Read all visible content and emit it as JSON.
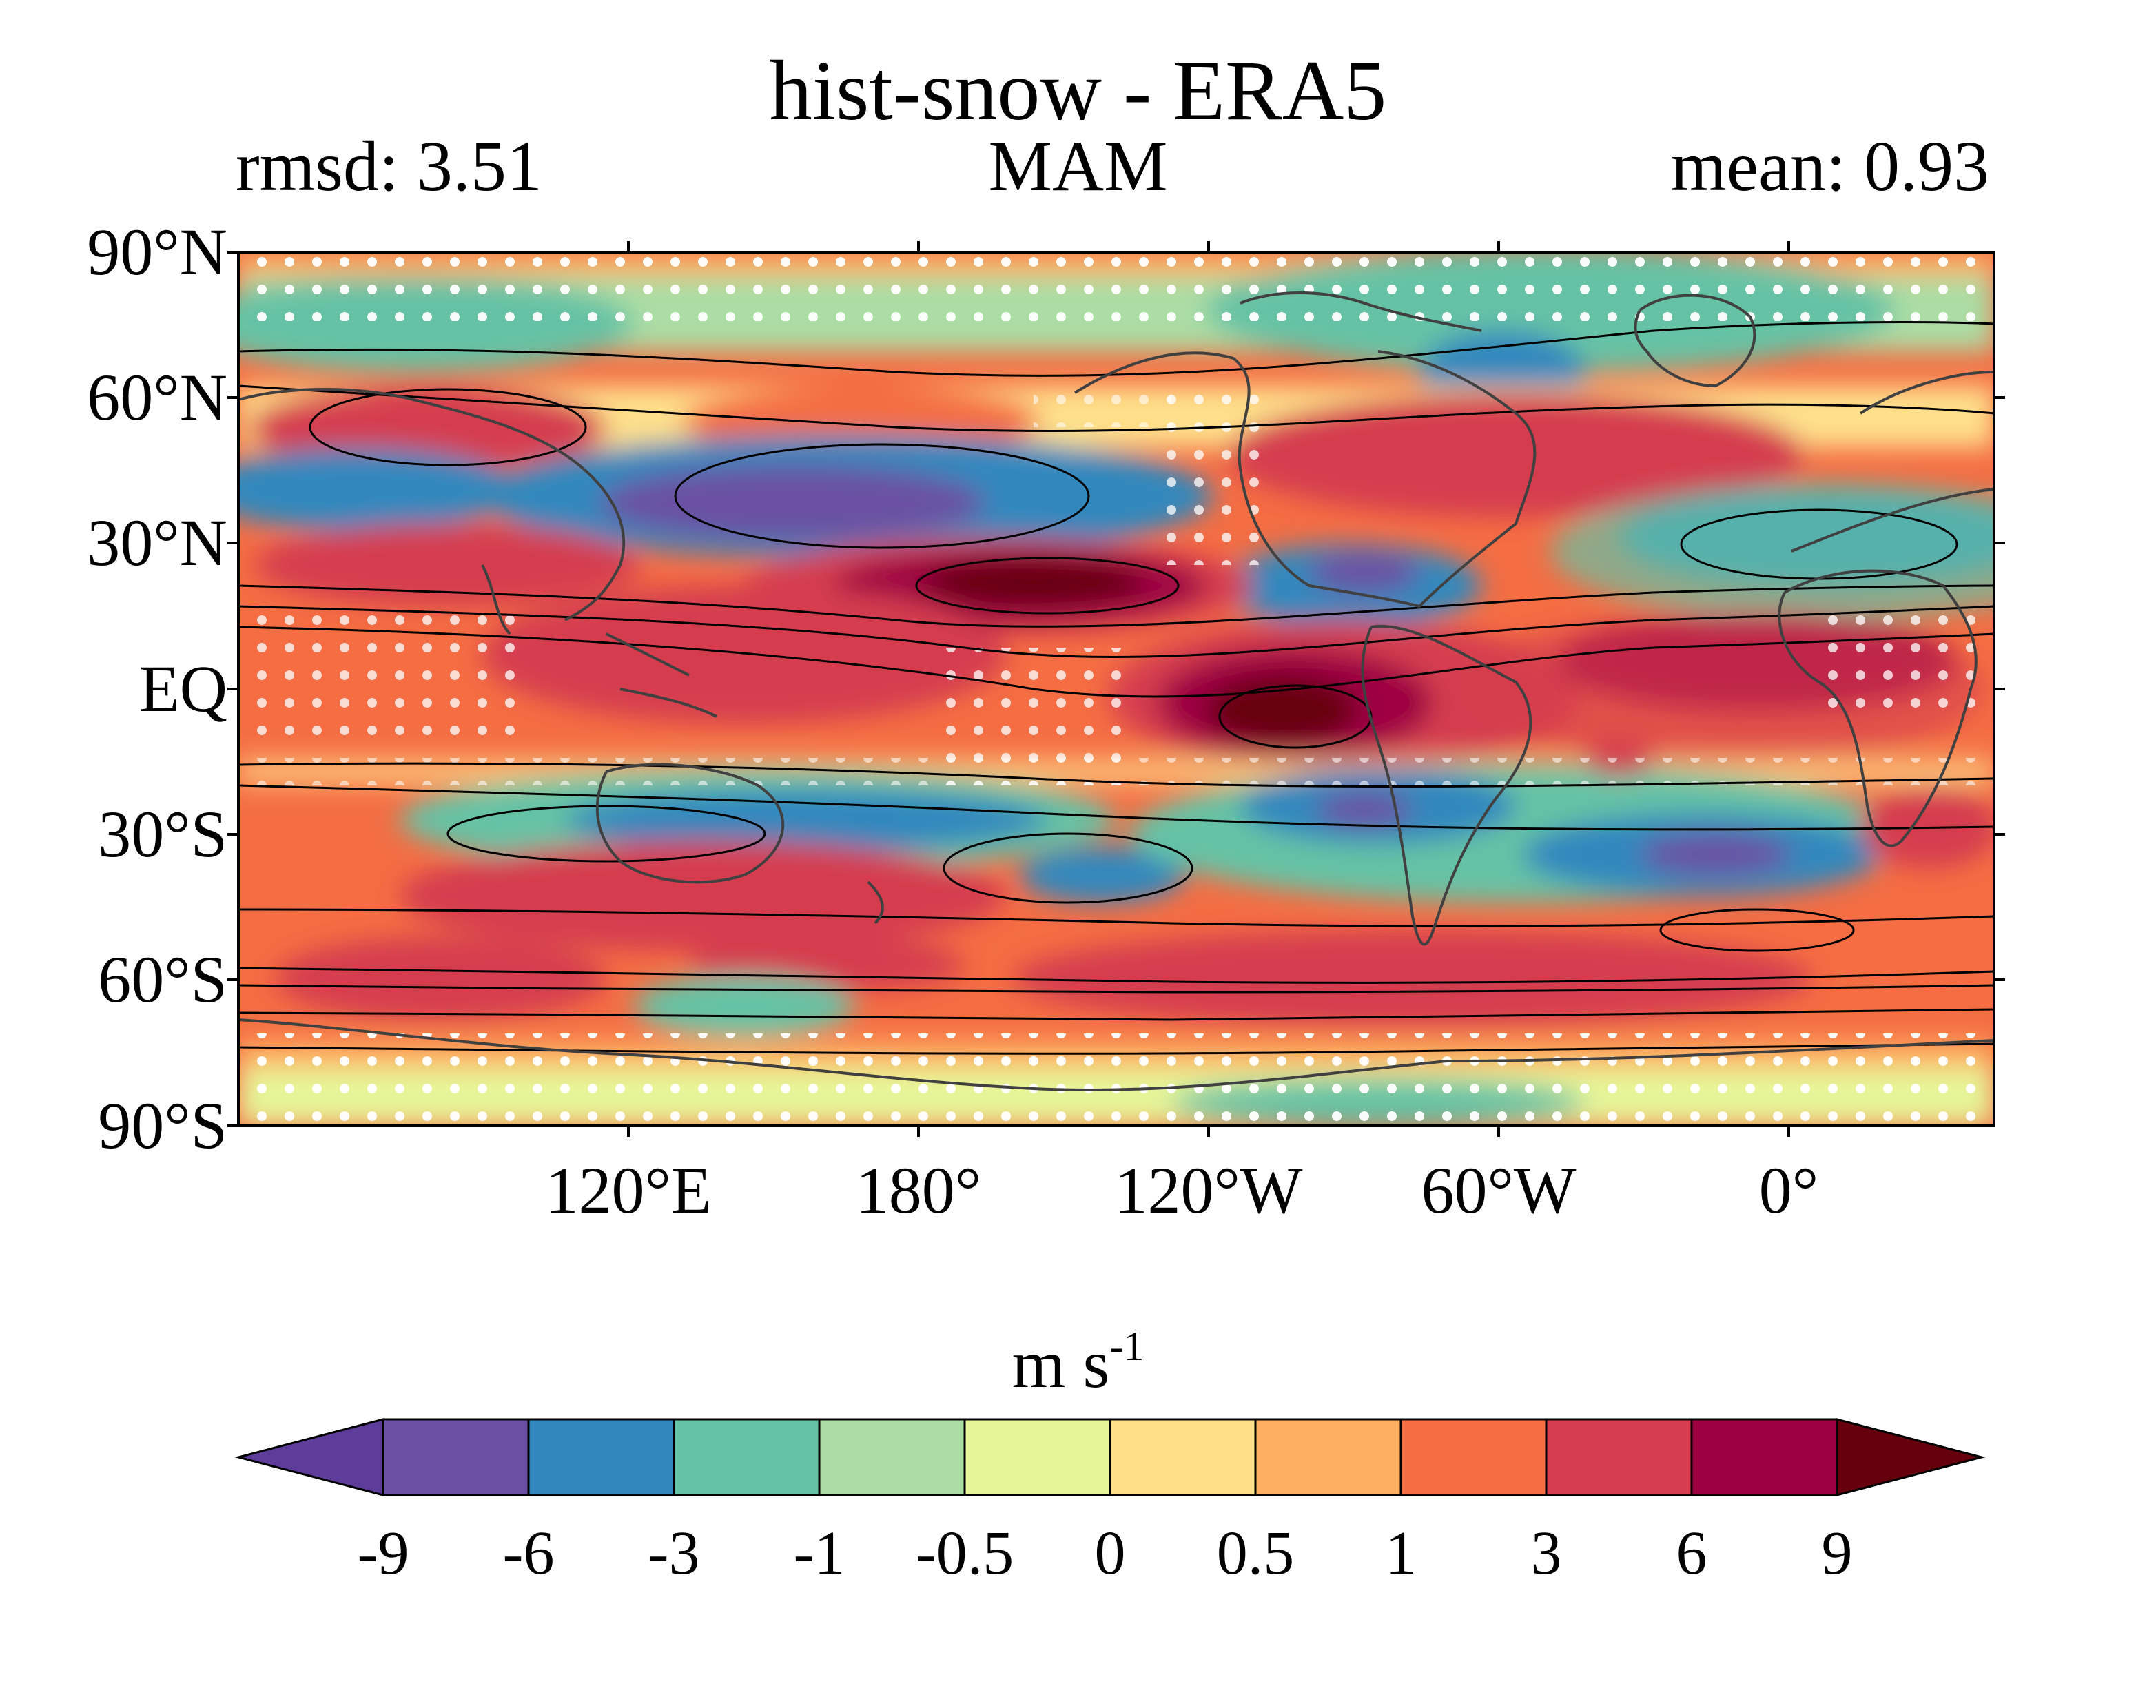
{
  "header": {
    "title": "hist-snow - ERA5",
    "left_label": "rmsd: 3.51",
    "center_label": "MAM",
    "right_label": "mean: 0.93"
  },
  "map": {
    "lat_labels": [
      "90°N",
      "60°N",
      "30°N",
      "EQ",
      "30°S",
      "60°S",
      "90°S"
    ],
    "lon_labels": [
      "120°E",
      "180°",
      "120°W",
      "60°W",
      "0°"
    ],
    "projection": "plate-carree",
    "central_longitude": "-150",
    "stippling": "white dots",
    "contour_color": "#000000",
    "coastline_color": "#404040"
  },
  "colorbar": {
    "unit_base": "m s",
    "unit_exp": "-1",
    "tick_labels": [
      "-9",
      "-6",
      "-3",
      "-1",
      "-0.5",
      "0",
      "0.5",
      "1",
      "3",
      "6",
      "9"
    ],
    "colors": [
      "#5e3c99",
      "#6a51a3",
      "#3288bd",
      "#66c2a5",
      "#abdda4",
      "#e6f598",
      "#fee08b",
      "#fdae61",
      "#f46d43",
      "#d53e4f",
      "#9e0142",
      "#67000d"
    ],
    "extend": "both"
  }
}
